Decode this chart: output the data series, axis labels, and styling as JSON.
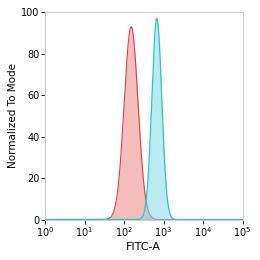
{
  "title": "",
  "xlabel": "FITC-A",
  "ylabel": "Normalized To Mode",
  "ylim": [
    0,
    100
  ],
  "yticks": [
    0,
    20,
    40,
    60,
    80,
    100
  ],
  "xticks_log": [
    0,
    1,
    2,
    3,
    4,
    5
  ],
  "red_peak_log": 2.18,
  "red_peak_height": 93,
  "red_sigma_log": 0.175,
  "blue_peak_log": 2.83,
  "blue_peak_height": 97,
  "blue_sigma_log": 0.125,
  "red_fill_color": "#f08888",
  "red_line_color": "#d94040",
  "blue_fill_color": "#80dde8",
  "blue_line_color": "#30c0d0",
  "fill_alpha": 0.55,
  "baseline_color": "#30c0d0",
  "background_color": "#ffffff",
  "border_color": "#cccccc",
  "fig_width": 2.6,
  "fig_height": 2.6,
  "dpi": 100,
  "xlabel_fontsize": 8,
  "ylabel_fontsize": 7.5,
  "tick_labelsize": 7
}
